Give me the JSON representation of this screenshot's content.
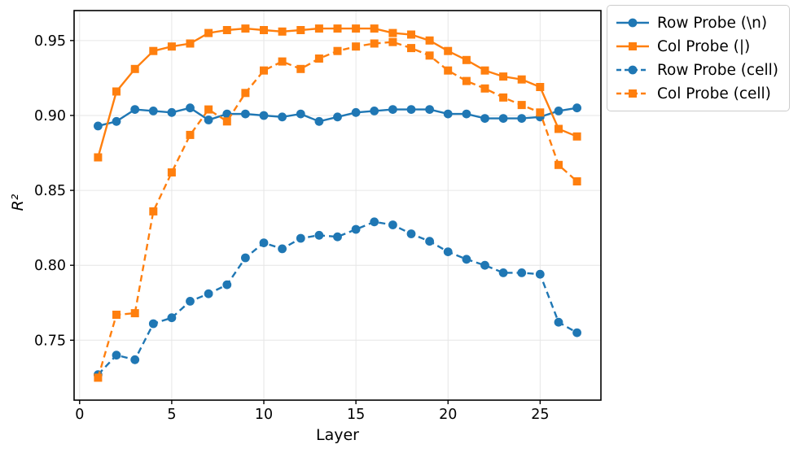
{
  "colors": {
    "blue": "#1f77b4",
    "orange": "#ff7f0e",
    "grid": "#e6e6e6",
    "spine": "#000000",
    "legend_border": "#cccccc",
    "background": "#ffffff"
  },
  "chart_data": {
    "type": "line",
    "title": "",
    "xlabel": "Layer",
    "ylabel": "R²",
    "grid": true,
    "legend_position": "outside-top-right",
    "xlim": [
      -0.3,
      28.3
    ],
    "ylim": [
      0.71,
      0.97
    ],
    "xticks": [
      0,
      5,
      10,
      15,
      20,
      25
    ],
    "yticks": [
      0.75,
      0.8,
      0.85,
      0.9,
      0.95
    ],
    "x": [
      1,
      2,
      3,
      4,
      5,
      6,
      7,
      8,
      9,
      10,
      11,
      12,
      13,
      14,
      15,
      16,
      17,
      18,
      19,
      20,
      21,
      22,
      23,
      24,
      25,
      26,
      27
    ],
    "series": [
      {
        "name": "Row Probe (\\n)",
        "color": "#1f77b4",
        "style": "solid",
        "marker": "circle",
        "values": [
          0.893,
          0.896,
          0.904,
          0.903,
          0.902,
          0.905,
          0.897,
          0.901,
          0.901,
          0.9,
          0.899,
          0.901,
          0.896,
          0.899,
          0.902,
          0.903,
          0.904,
          0.904,
          0.904,
          0.901,
          0.901,
          0.898,
          0.898,
          0.898,
          0.899,
          0.903,
          0.905
        ]
      },
      {
        "name": "Col Probe (|)",
        "color": "#ff7f0e",
        "style": "solid",
        "marker": "square",
        "values": [
          0.872,
          0.916,
          0.931,
          0.943,
          0.946,
          0.948,
          0.955,
          0.957,
          0.958,
          0.957,
          0.956,
          0.957,
          0.958,
          0.958,
          0.958,
          0.958,
          0.955,
          0.954,
          0.95,
          0.943,
          0.937,
          0.93,
          0.926,
          0.924,
          0.919,
          0.891,
          0.886
        ]
      },
      {
        "name": "Row Probe (cell)",
        "color": "#1f77b4",
        "style": "dashed",
        "marker": "circle",
        "values": [
          0.727,
          0.74,
          0.737,
          0.761,
          0.765,
          0.776,
          0.781,
          0.787,
          0.805,
          0.815,
          0.811,
          0.818,
          0.82,
          0.819,
          0.824,
          0.829,
          0.827,
          0.821,
          0.816,
          0.809,
          0.804,
          0.8,
          0.795,
          0.795,
          0.794,
          0.762,
          0.755
        ]
      },
      {
        "name": "Col Probe (cell)",
        "color": "#ff7f0e",
        "style": "dashed",
        "marker": "square",
        "values": [
          0.725,
          0.767,
          0.768,
          0.836,
          0.862,
          0.887,
          0.904,
          0.896,
          0.915,
          0.93,
          0.936,
          0.931,
          0.938,
          0.943,
          0.946,
          0.948,
          0.949,
          0.945,
          0.94,
          0.93,
          0.923,
          0.918,
          0.912,
          0.907,
          0.902,
          0.867,
          0.856
        ]
      }
    ]
  }
}
